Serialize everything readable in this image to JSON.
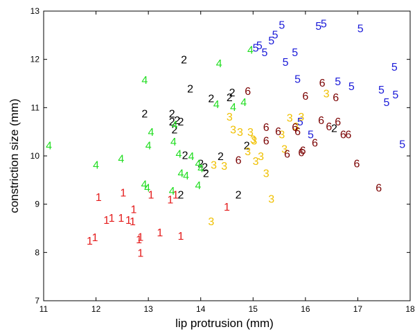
{
  "chart_data": {
    "type": "scatter",
    "title": "",
    "xlabel": "lip protrusion (mm)",
    "ylabel": "constriction size (mm)",
    "xlim": [
      11,
      18
    ],
    "ylim": [
      7,
      13
    ],
    "xticks": [
      11,
      12,
      13,
      14,
      15,
      16,
      17,
      18
    ],
    "yticks": [
      7,
      8,
      9,
      10,
      11,
      12,
      13
    ],
    "grid": false,
    "legend": "none",
    "series": [
      {
        "label": "1",
        "color": "#e41a1a",
        "points": [
          [
            11.88,
            8.25
          ],
          [
            11.98,
            8.32
          ],
          [
            12.05,
            9.15
          ],
          [
            12.2,
            8.68
          ],
          [
            12.3,
            8.72
          ],
          [
            12.48,
            8.72
          ],
          [
            12.52,
            9.25
          ],
          [
            12.62,
            8.68
          ],
          [
            12.7,
            8.65
          ],
          [
            12.72,
            8.9
          ],
          [
            12.82,
            8.28
          ],
          [
            12.85,
            8.33
          ],
          [
            12.85,
            8.0
          ],
          [
            13.05,
            9.2
          ],
          [
            13.22,
            8.42
          ],
          [
            13.42,
            9.1
          ],
          [
            13.52,
            9.2
          ],
          [
            13.62,
            8.35
          ],
          [
            14.5,
            8.95
          ]
        ]
      },
      {
        "label": "2",
        "color": "#000000",
        "points": [
          [
            12.93,
            10.88
          ],
          [
            13.45,
            10.88
          ],
          [
            13.45,
            10.72
          ],
          [
            13.55,
            10.75
          ],
          [
            13.62,
            10.72
          ],
          [
            13.5,
            10.55
          ],
          [
            13.7,
            10.02
          ],
          [
            13.8,
            11.4
          ],
          [
            14.0,
            9.85
          ],
          [
            14.08,
            9.78
          ],
          [
            14.1,
            9.65
          ],
          [
            14.2,
            11.2
          ],
          [
            14.38,
            10.0
          ],
          [
            14.55,
            11.22
          ],
          [
            14.6,
            11.32
          ],
          [
            14.72,
            9.2
          ],
          [
            14.88,
            10.22
          ],
          [
            16.55,
            10.58
          ],
          [
            13.68,
            12.0
          ],
          [
            13.62,
            9.2
          ]
        ]
      },
      {
        "label": "3",
        "color": "#f0c000",
        "points": [
          [
            14.2,
            8.65
          ],
          [
            14.25,
            9.82
          ],
          [
            14.45,
            9.8
          ],
          [
            14.55,
            10.82
          ],
          [
            14.62,
            10.55
          ],
          [
            14.75,
            10.5
          ],
          [
            14.9,
            10.1
          ],
          [
            14.95,
            10.5
          ],
          [
            15.05,
            9.9
          ],
          [
            15.15,
            10.0
          ],
          [
            15.02,
            10.32
          ],
          [
            15.0,
            10.35
          ],
          [
            15.25,
            9.65
          ],
          [
            15.35,
            9.12
          ],
          [
            15.55,
            10.45
          ],
          [
            15.7,
            10.8
          ],
          [
            15.92,
            10.82
          ],
          [
            16.4,
            11.3
          ],
          [
            15.6,
            10.15
          ],
          [
            15.82,
            10.62
          ]
        ]
      },
      {
        "label": "4",
        "color": "#22dd22",
        "points": [
          [
            11.1,
            10.22
          ],
          [
            12.0,
            9.82
          ],
          [
            12.48,
            9.95
          ],
          [
            12.92,
            9.42
          ],
          [
            12.98,
            9.35
          ],
          [
            13.05,
            10.5
          ],
          [
            13.0,
            10.22
          ],
          [
            13.45,
            9.28
          ],
          [
            13.58,
            10.05
          ],
          [
            13.48,
            10.3
          ],
          [
            13.5,
            10.65
          ],
          [
            13.62,
            9.65
          ],
          [
            13.72,
            9.6
          ],
          [
            13.82,
            10.0
          ],
          [
            13.95,
            9.85
          ],
          [
            14.0,
            9.75
          ],
          [
            14.3,
            11.08
          ],
          [
            14.35,
            11.92
          ],
          [
            14.62,
            11.02
          ],
          [
            14.82,
            11.12
          ],
          [
            14.95,
            12.2
          ],
          [
            12.93,
            11.58
          ],
          [
            13.95,
            9.4
          ]
        ]
      },
      {
        "label": "5",
        "color": "#1a1ad8",
        "points": [
          [
            15.05,
            12.25
          ],
          [
            15.12,
            12.3
          ],
          [
            15.22,
            12.15
          ],
          [
            15.35,
            12.4
          ],
          [
            15.42,
            12.52
          ],
          [
            15.55,
            12.72
          ],
          [
            15.62,
            11.95
          ],
          [
            15.8,
            12.15
          ],
          [
            15.85,
            11.6
          ],
          [
            15.9,
            10.72
          ],
          [
            16.1,
            10.45
          ],
          [
            16.25,
            12.7
          ],
          [
            16.35,
            12.75
          ],
          [
            16.62,
            11.55
          ],
          [
            16.88,
            11.45
          ],
          [
            17.05,
            12.65
          ],
          [
            17.45,
            11.38
          ],
          [
            17.55,
            11.12
          ],
          [
            17.72,
            11.28
          ],
          [
            17.85,
            10.25
          ],
          [
            17.7,
            11.85
          ]
        ]
      },
      {
        "label": "6",
        "color": "#7a0000",
        "points": [
          [
            14.72,
            9.92
          ],
          [
            14.9,
            11.35
          ],
          [
            15.25,
            10.6
          ],
          [
            15.25,
            10.32
          ],
          [
            15.48,
            10.52
          ],
          [
            15.65,
            10.05
          ],
          [
            15.8,
            10.6
          ],
          [
            15.85,
            10.52
          ],
          [
            15.92,
            10.08
          ],
          [
            15.95,
            10.12
          ],
          [
            16.0,
            11.25
          ],
          [
            16.18,
            10.28
          ],
          [
            16.3,
            10.75
          ],
          [
            16.32,
            11.52
          ],
          [
            16.45,
            10.62
          ],
          [
            16.58,
            11.22
          ],
          [
            16.62,
            10.72
          ],
          [
            16.72,
            10.45
          ],
          [
            16.82,
            10.45
          ],
          [
            16.98,
            9.85
          ],
          [
            17.4,
            9.35
          ]
        ]
      }
    ]
  }
}
